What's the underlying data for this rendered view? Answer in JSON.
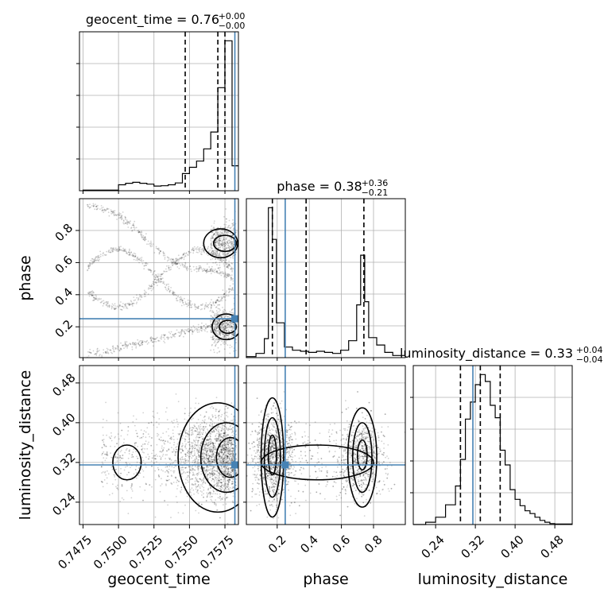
{
  "chart_data": {
    "type": "corner",
    "parameters": [
      "geocent_time",
      "phase",
      "luminosity_distance"
    ],
    "titles": [
      {
        "text": "geocent_time = 0.76",
        "plus": "+0.00",
        "minus": "−0.00"
      },
      {
        "text": "phase = 0.38",
        "plus": "+0.36",
        "minus": "−0.21"
      },
      {
        "text": "luminosity_distance = 0.33",
        "plus": "+0.04",
        "minus": "−0.04"
      }
    ],
    "axis_labels": {
      "x": [
        "geocent_time",
        "phase",
        "luminosity_distance"
      ],
      "y": [
        "phase",
        "luminosity_distance"
      ]
    },
    "tick_labels": {
      "geocent_time": [
        "0.7475",
        "0.7500",
        "0.7525",
        "0.7550",
        "0.7575"
      ],
      "phase": [
        "0.2",
        "0.4",
        "0.6",
        "0.8"
      ],
      "luminosity_distance": [
        "0.24",
        "0.32",
        "0.40",
        "0.48"
      ]
    },
    "ranges": {
      "geocent_time": [
        0.74725,
        0.75845
      ],
      "phase": [
        0.008,
        0.998
      ],
      "luminosity_distance": [
        0.195,
        0.515
      ]
    },
    "ticks": {
      "geocent_time": [
        0.7475,
        0.75,
        0.7525,
        0.755,
        0.7575
      ],
      "phase": [
        0.2,
        0.4,
        0.6,
        0.8
      ],
      "luminosity_distance": [
        0.24,
        0.32,
        0.4,
        0.48
      ]
    },
    "truths": {
      "geocent_time": 0.7582,
      "phase": 0.25,
      "luminosity_distance": 0.315
    },
    "quantiles": {
      "geocent_time": [
        0.7547,
        0.757,
        0.7575
      ],
      "phase": [
        0.17,
        0.38,
        0.74
      ],
      "luminosity_distance": [
        0.29,
        0.33,
        0.37
      ]
    },
    "histograms": {
      "geocent_time": {
        "edges": [
          0.7475,
          0.75,
          0.7505,
          0.751,
          0.7515,
          0.752,
          0.7525,
          0.753,
          0.7535,
          0.754,
          0.7545,
          0.755,
          0.7555,
          0.756,
          0.7565,
          0.757,
          0.7575,
          0.758,
          0.75845
        ],
        "counts": [
          0.2,
          1.9,
          2.4,
          2.7,
          2.4,
          2.1,
          1.5,
          1.6,
          1.9,
          2.5,
          5.5,
          7.5,
          9.5,
          13.4,
          18.8,
          33.0,
          48.0,
          8.0
        ]
      },
      "phase": {
        "edges": [
          0.008,
          0.068,
          0.12,
          0.145,
          0.17,
          0.195,
          0.245,
          0.295,
          0.345,
          0.395,
          0.445,
          0.495,
          0.545,
          0.595,
          0.645,
          0.695,
          0.72,
          0.745,
          0.77,
          0.82,
          0.87,
          0.92,
          0.998
        ],
        "counts": [
          1,
          4,
          18,
          142,
          112,
          33,
          10,
          7,
          6,
          5,
          6,
          5,
          4,
          7,
          16,
          50,
          97,
          53,
          19,
          12,
          5,
          2
        ]
      },
      "luminosity_distance": {
        "edges": [
          0.195,
          0.22,
          0.24,
          0.26,
          0.28,
          0.29,
          0.3,
          0.31,
          0.32,
          0.33,
          0.34,
          0.35,
          0.36,
          0.37,
          0.38,
          0.39,
          0.4,
          0.41,
          0.42,
          0.43,
          0.44,
          0.45,
          0.46,
          0.47,
          0.48,
          0.515
        ],
        "counts": [
          0,
          5,
          16,
          43,
          84,
          142,
          230,
          267,
          305,
          327,
          312,
          260,
          233,
          162,
          130,
          76,
          55,
          41,
          30,
          24,
          16,
          9,
          5,
          2,
          1
        ]
      }
    }
  }
}
